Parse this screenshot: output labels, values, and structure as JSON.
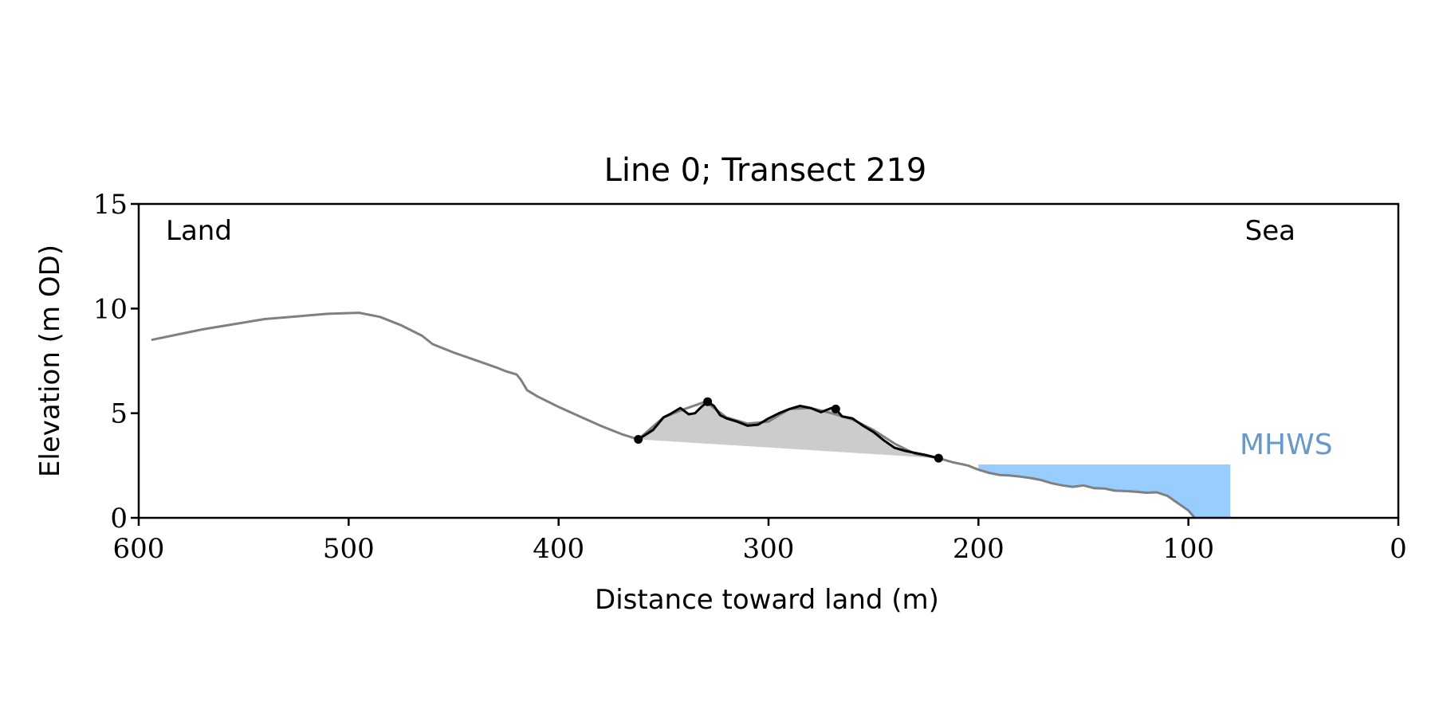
{
  "chart_data": {
    "type": "area",
    "title": "Line 0; Transect 219",
    "xlabel": "Distance toward land (m)",
    "ylabel": "Elevation (m OD)",
    "xlim": [
      600,
      0
    ],
    "ylim": [
      0,
      15
    ],
    "x_reversed": true,
    "xticks": [
      600,
      500,
      400,
      300,
      200,
      100,
      0
    ],
    "yticks": [
      0,
      5,
      10,
      15
    ],
    "grid": false,
    "annotations": {
      "land_label": "Land",
      "sea_label": "Sea",
      "mhws_label": "MHWS"
    },
    "mhws": {
      "level": 2.55,
      "x_start": 200,
      "x_end": 80,
      "color": "#99ccff",
      "label_color": "#6699cc"
    },
    "profile": {
      "color": "#808080",
      "x": [
        594,
        570,
        540,
        510,
        495,
        485,
        475,
        465,
        460,
        450,
        440,
        430,
        425,
        420,
        418,
        415,
        410,
        400,
        390,
        380,
        370,
        362,
        350,
        340,
        330,
        320,
        310,
        300,
        290,
        280,
        270,
        260,
        250,
        240,
        230,
        219,
        212,
        205,
        200,
        195,
        190,
        185,
        180,
        175,
        170,
        165,
        160,
        155,
        150,
        145,
        140,
        135,
        130,
        125,
        120,
        115,
        110,
        105,
        100,
        97
      ],
      "y": [
        8.5,
        9.0,
        9.5,
        9.75,
        9.8,
        9.6,
        9.2,
        8.7,
        8.3,
        7.9,
        7.55,
        7.2,
        7.0,
        6.85,
        6.6,
        6.1,
        5.8,
        5.3,
        4.85,
        4.4,
        4.0,
        3.75,
        4.8,
        5.2,
        5.55,
        4.8,
        4.5,
        4.6,
        5.2,
        5.25,
        5.0,
        4.7,
        4.2,
        3.55,
        3.05,
        2.85,
        2.65,
        2.5,
        2.3,
        2.15,
        2.05,
        2.02,
        1.97,
        1.9,
        1.8,
        1.65,
        1.55,
        1.48,
        1.55,
        1.42,
        1.4,
        1.3,
        1.28,
        1.25,
        1.2,
        1.22,
        1.05,
        0.7,
        0.35,
        0.0
      ]
    },
    "dune": {
      "color": "#000000",
      "fill": "#cccccc",
      "x": [
        362,
        355,
        350,
        347,
        342,
        338,
        335,
        332,
        329,
        326,
        323,
        320,
        315,
        310,
        305,
        300,
        295,
        290,
        285,
        280,
        275,
        270,
        268,
        265,
        260,
        255,
        250,
        245,
        240,
        235,
        230,
        225,
        219
      ],
      "y": [
        3.75,
        4.2,
        4.8,
        4.95,
        5.25,
        4.95,
        5.0,
        5.3,
        5.55,
        5.35,
        4.9,
        4.75,
        4.6,
        4.4,
        4.45,
        4.75,
        5.0,
        5.2,
        5.35,
        5.25,
        5.05,
        5.25,
        5.2,
        4.85,
        4.75,
        4.4,
        4.1,
        3.7,
        3.35,
        3.2,
        3.1,
        3.0,
        2.85
      ],
      "base_x": [
        362,
        219
      ],
      "base_y": [
        3.75,
        2.85
      ],
      "markers": [
        {
          "x": 362,
          "y": 3.75
        },
        {
          "x": 329,
          "y": 5.55
        },
        {
          "x": 268,
          "y": 5.2
        },
        {
          "x": 219,
          "y": 2.85
        }
      ]
    }
  }
}
